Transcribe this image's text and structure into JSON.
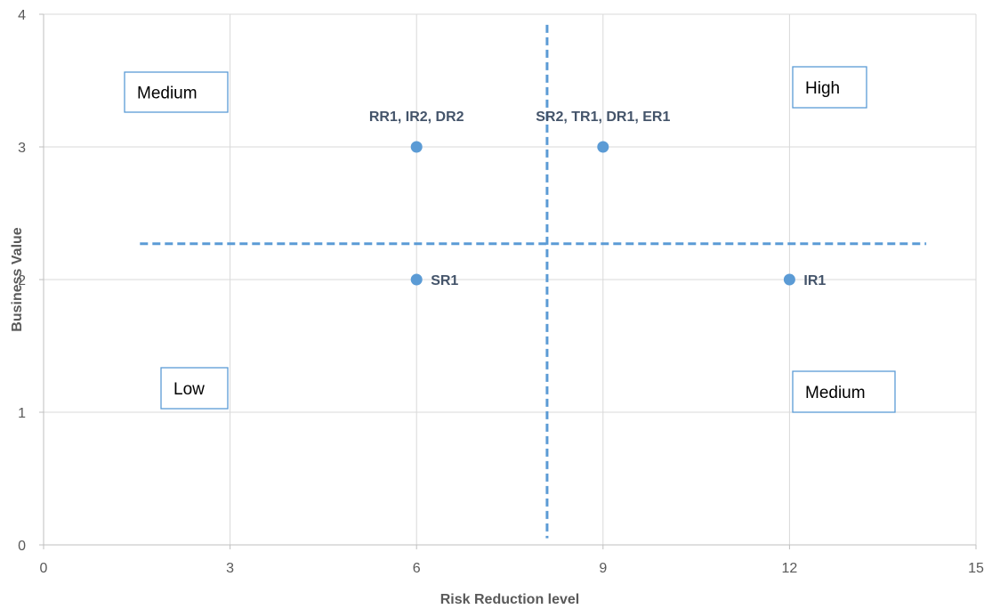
{
  "chart_data": {
    "type": "scatter",
    "title": "",
    "xlabel": "Risk Reduction level",
    "ylabel": "Business Value",
    "xlim": [
      0,
      15
    ],
    "ylim": [
      0,
      4
    ],
    "x_ticks": [
      0,
      3,
      6,
      9,
      12,
      15
    ],
    "y_ticks": [
      0,
      1,
      2,
      3,
      4
    ],
    "grid": true,
    "point_color": "#5b9bd5",
    "divider_color": "#5b9bd5",
    "points": [
      {
        "x": 6,
        "y": 3,
        "label": "RR1, IR2, DR2",
        "label_position": "above"
      },
      {
        "x": 9,
        "y": 3,
        "label": "SR2, TR1, DR1, ER1",
        "label_position": "above"
      },
      {
        "x": 6,
        "y": 2,
        "label": "SR1",
        "label_position": "right"
      },
      {
        "x": 12,
        "y": 2,
        "label": "IR1",
        "label_position": "right"
      }
    ],
    "dividers": {
      "vertical": {
        "x": 8.1,
        "y_from": 0.05,
        "y_to": 3.92
      },
      "horizontal": {
        "y": 2.27,
        "x_from": 1.55,
        "x_to": 14.2
      }
    },
    "quadrant_labels": [
      {
        "text": "Medium",
        "quadrant": "top-left"
      },
      {
        "text": "High",
        "quadrant": "top-right"
      },
      {
        "text": "Low",
        "quadrant": "bottom-left"
      },
      {
        "text": "Medium",
        "quadrant": "bottom-right"
      }
    ]
  }
}
